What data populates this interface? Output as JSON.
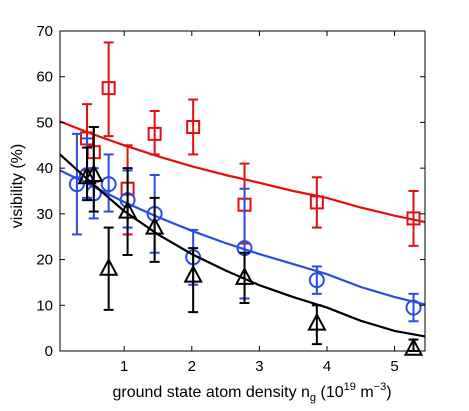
{
  "chart_data": {
    "type": "scatter",
    "title": "",
    "xlabel": "ground state atom density n_g (10^19 m^-3)",
    "xlabel_parts": {
      "main": "ground state atom density n",
      "sub": "g",
      "open": " (10",
      "exp": "19",
      "unit": " m",
      "unit_exp": "−3",
      "close": ")"
    },
    "ylabel": "visibility (%)",
    "xlim": [
      0.05,
      5.45
    ],
    "ylim": [
      0,
      70
    ],
    "xticks": [
      1,
      2,
      3,
      4,
      5
    ],
    "yticks": [
      0,
      10,
      20,
      30,
      40,
      50,
      60,
      70
    ],
    "grid": false,
    "legend": "none",
    "series": [
      {
        "marker": "square",
        "color": "#e01010",
        "points": [
          {
            "x": 0.45,
            "y": 46.5,
            "lo": 39.5,
            "hi": 54.0
          },
          {
            "x": 0.55,
            "y": 43.5,
            "lo": 37.0,
            "hi": 49.0
          },
          {
            "x": 0.77,
            "y": 57.5,
            "lo": 47.0,
            "hi": 67.5
          },
          {
            "x": 1.05,
            "y": 35.5,
            "lo": 25.5,
            "hi": 45.0
          },
          {
            "x": 1.45,
            "y": 47.5,
            "lo": 43.0,
            "hi": 52.5
          },
          {
            "x": 2.02,
            "y": 49.0,
            "lo": 43.0,
            "hi": 55.0
          },
          {
            "x": 2.78,
            "y": 32.0,
            "lo": 23.5,
            "hi": 41.0
          },
          {
            "x": 3.85,
            "y": 32.5,
            "lo": 27.0,
            "hi": 38.0
          },
          {
            "x": 5.28,
            "y": 29.0,
            "lo": 23.0,
            "hi": 35.0
          }
        ],
        "fit": [
          [
            0.05,
            50.2
          ],
          [
            0.5,
            47.6
          ],
          [
            1.0,
            45.0
          ],
          [
            1.5,
            42.6
          ],
          [
            2.0,
            40.4
          ],
          [
            2.5,
            38.5
          ],
          [
            3.0,
            36.8
          ],
          [
            3.5,
            35.0
          ],
          [
            4.0,
            33.5
          ],
          [
            4.5,
            31.4
          ],
          [
            5.0,
            29.6
          ],
          [
            5.45,
            28.2
          ]
        ]
      },
      {
        "marker": "circle",
        "color": "#2a4ce0",
        "points": [
          {
            "x": 0.3,
            "y": 36.5,
            "lo": 25.5,
            "hi": 47.5
          },
          {
            "x": 0.45,
            "y": 38.5,
            "lo": 33.5,
            "hi": 46.5
          },
          {
            "x": 0.55,
            "y": 34.5,
            "lo": 29.0,
            "hi": 40.0
          },
          {
            "x": 0.77,
            "y": 36.5,
            "lo": 30.5,
            "hi": 43.0
          },
          {
            "x": 1.05,
            "y": 33.0,
            "lo": 27.0,
            "hi": 39.5
          },
          {
            "x": 1.45,
            "y": 30.0,
            "lo": 21.5,
            "hi": 38.5
          },
          {
            "x": 2.02,
            "y": 20.5,
            "lo": 14.5,
            "hi": 26.5
          },
          {
            "x": 2.78,
            "y": 22.5,
            "lo": 11.5,
            "hi": 35.5
          },
          {
            "x": 3.85,
            "y": 15.5,
            "lo": 12.5,
            "hi": 18.5
          },
          {
            "x": 5.28,
            "y": 9.5,
            "lo": 6.5,
            "hi": 12.5
          }
        ],
        "fit": [
          [
            0.05,
            39.5
          ],
          [
            0.5,
            36.3
          ],
          [
            1.0,
            32.6
          ],
          [
            1.5,
            29.3
          ],
          [
            2.0,
            26.3
          ],
          [
            2.5,
            23.6
          ],
          [
            3.0,
            21.2
          ],
          [
            3.5,
            19.0
          ],
          [
            4.0,
            16.8
          ],
          [
            4.5,
            14.0
          ],
          [
            5.0,
            11.8
          ],
          [
            5.45,
            10.2
          ]
        ]
      },
      {
        "marker": "triangle",
        "color": "#000000",
        "points": [
          {
            "x": 0.45,
            "y": 38.0,
            "lo": 33.0,
            "hi": 44.5
          },
          {
            "x": 0.55,
            "y": 38.5,
            "lo": 30.5,
            "hi": 49.0
          },
          {
            "x": 0.77,
            "y": 18.0,
            "lo": 9.0,
            "hi": 27.0
          },
          {
            "x": 1.05,
            "y": 30.5,
            "lo": 21.0,
            "hi": 40.0
          },
          {
            "x": 1.45,
            "y": 27.0,
            "lo": 19.5,
            "hi": 33.5
          },
          {
            "x": 2.02,
            "y": 16.5,
            "lo": 8.5,
            "hi": 22.5
          },
          {
            "x": 2.78,
            "y": 16.0,
            "lo": 10.5,
            "hi": 21.5
          },
          {
            "x": 3.85,
            "y": 6.0,
            "lo": 1.5,
            "hi": 10.0
          },
          {
            "x": 5.28,
            "y": 0.5,
            "lo": 0.0,
            "hi": 2.5
          }
        ],
        "fit": [
          [
            0.05,
            43.0
          ],
          [
            0.5,
            37.0
          ],
          [
            1.0,
            30.6
          ],
          [
            1.5,
            25.5
          ],
          [
            2.0,
            21.2
          ],
          [
            2.5,
            17.6
          ],
          [
            3.0,
            14.4
          ],
          [
            3.5,
            11.8
          ],
          [
            4.0,
            9.5
          ],
          [
            4.5,
            6.6
          ],
          [
            5.0,
            4.4
          ],
          [
            5.45,
            3.2
          ]
        ]
      }
    ]
  }
}
